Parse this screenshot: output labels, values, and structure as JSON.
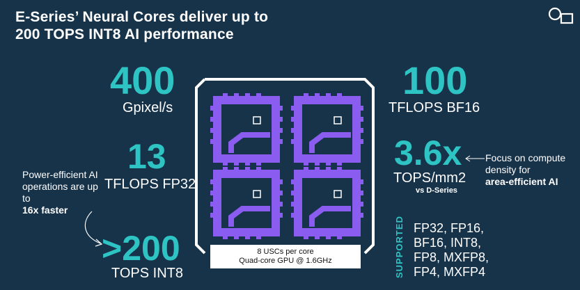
{
  "title_line1": "E-Series’ Neural Cores deliver up to",
  "title_line2": "200 TOPS INT8 AI performance",
  "logo": "imagination-logo-icon",
  "colors": {
    "background": "#17334a",
    "accent": "#2fc4c4",
    "core": "#8a5cf0"
  },
  "stats": {
    "pixel": {
      "value": "400",
      "label": "Gpixel/s"
    },
    "fp32": {
      "value": "13",
      "label": "TFLOPS FP32"
    },
    "int8": {
      "value": ">200",
      "label": "TOPS INT8"
    },
    "bf16": {
      "value": "100",
      "label": "TFLOPS BF16"
    },
    "density": {
      "value": "3.6x",
      "label": "TOPS/mm2",
      "sub": "vs D-Series"
    }
  },
  "note_left": {
    "text": "Power-efficient AI operations are up to",
    "bold": "16x faster"
  },
  "note_right": {
    "text": "Focus on compute density for",
    "bold": "area-efficient AI"
  },
  "supported_label": "SUPPORTED",
  "formats": [
    "FP32, FP16,",
    "BF16, INT8,",
    "FP8, MXFP8,",
    "FP4, MXFP4"
  ],
  "gpu_caption": {
    "line1": "8 USCs per core",
    "line2": "Quad-core GPU @ 1.6GHz"
  }
}
